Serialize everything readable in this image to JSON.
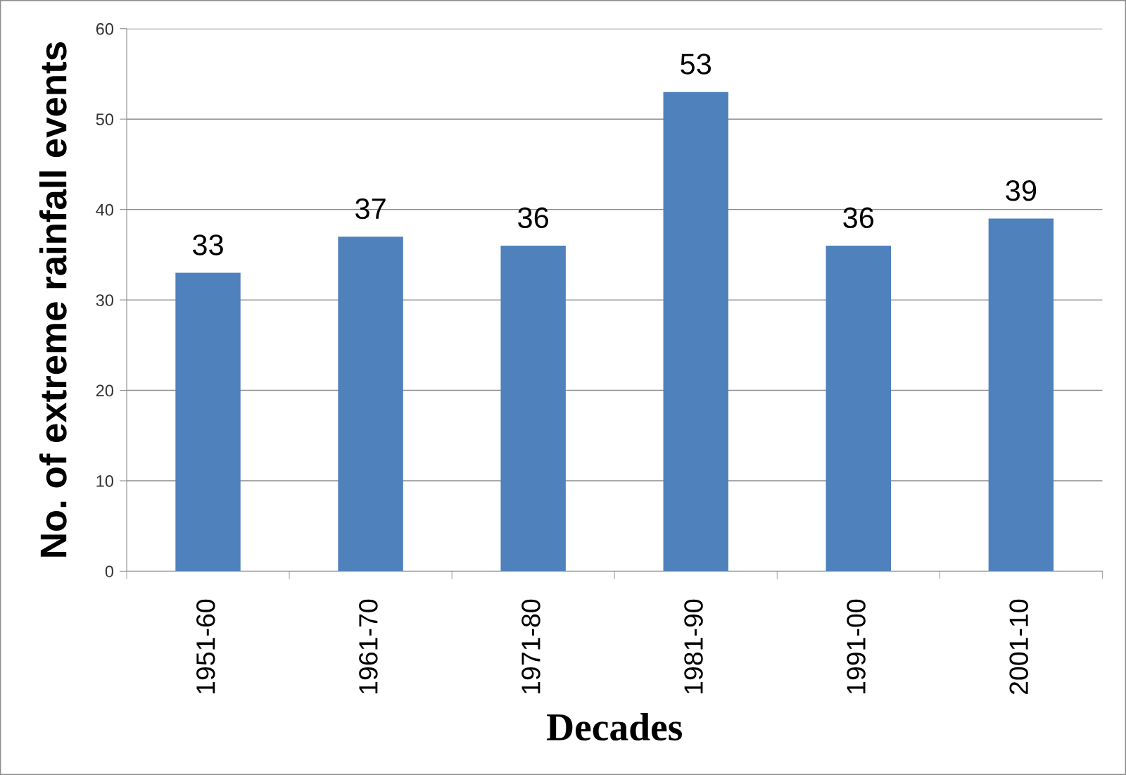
{
  "chart_data": {
    "type": "bar",
    "xlabel": "Decades",
    "ylabel": "No. of extreme rainfall events",
    "categories": [
      "1951-60",
      "1961-70",
      "1971-80",
      "1981-90",
      "1991-00",
      "2001-10"
    ],
    "values": [
      33,
      37,
      36,
      53,
      36,
      39
    ],
    "color": "#4f81bd",
    "ylim": [
      0,
      60
    ],
    "yticks": [
      0,
      10,
      20,
      30,
      40,
      50,
      60
    ],
    "grid": "y",
    "data_labels": true,
    "legend": false
  }
}
